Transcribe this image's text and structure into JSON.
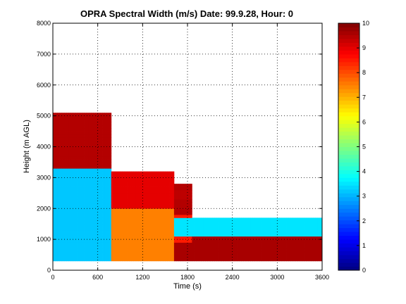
{
  "chart_data": {
    "type": "heatmap",
    "title": "OPRA Spectral Width (m/s)  Date: 99.9.28, Hour: 0",
    "xlabel": "Time (s)",
    "ylabel": "Height (m AGL)",
    "xlim": [
      0,
      3600
    ],
    "ylim": [
      0,
      8000
    ],
    "xticks": [
      0,
      600,
      1200,
      1800,
      2400,
      3000,
      3600
    ],
    "yticks": [
      0,
      1000,
      2000,
      3000,
      4000,
      5000,
      6000,
      7000,
      8000
    ],
    "grid": true,
    "colorbar": {
      "range": [
        0,
        10
      ],
      "ticks": [
        0,
        1,
        2,
        3,
        4,
        5,
        6,
        7,
        8,
        9,
        10
      ],
      "colormap": "jet"
    },
    "time_step": 30,
    "height_step": 100,
    "data_bottom_height": 300,
    "series": [
      {
        "name": "segment-1",
        "x_range": [
          0,
          780
        ],
        "top_height": 5100,
        "dominant_value": 3.2,
        "edge_value": 9.5,
        "edge_depth": 1800
      },
      {
        "name": "segment-2",
        "x_range": [
          780,
          1620
        ],
        "top_height": 3200,
        "dominant_value": 7.5,
        "edge_value": 9.0,
        "edge_depth": 1200
      },
      {
        "name": "segment-3",
        "x_range": [
          1620,
          1860
        ],
        "top_height": 2800,
        "dominant_value": 8.5,
        "edge_value": 9.5,
        "edge_depth": 1000
      },
      {
        "name": "segment-4",
        "x_range": [
          1860,
          3600
        ],
        "top_height": 1700,
        "dominant_value": 9.6,
        "edge_value": 9.8,
        "edge_depth": 400
      }
    ],
    "bands": [
      {
        "name": "band-1",
        "height_range": [
          300,
          900
        ],
        "value": 9.6
      },
      {
        "name": "band-2",
        "height_range": [
          1100,
          1700
        ],
        "value": 3.5
      },
      {
        "name": "band-3",
        "height_range": [
          2300,
          2600
        ],
        "value": 9.4
      }
    ]
  }
}
